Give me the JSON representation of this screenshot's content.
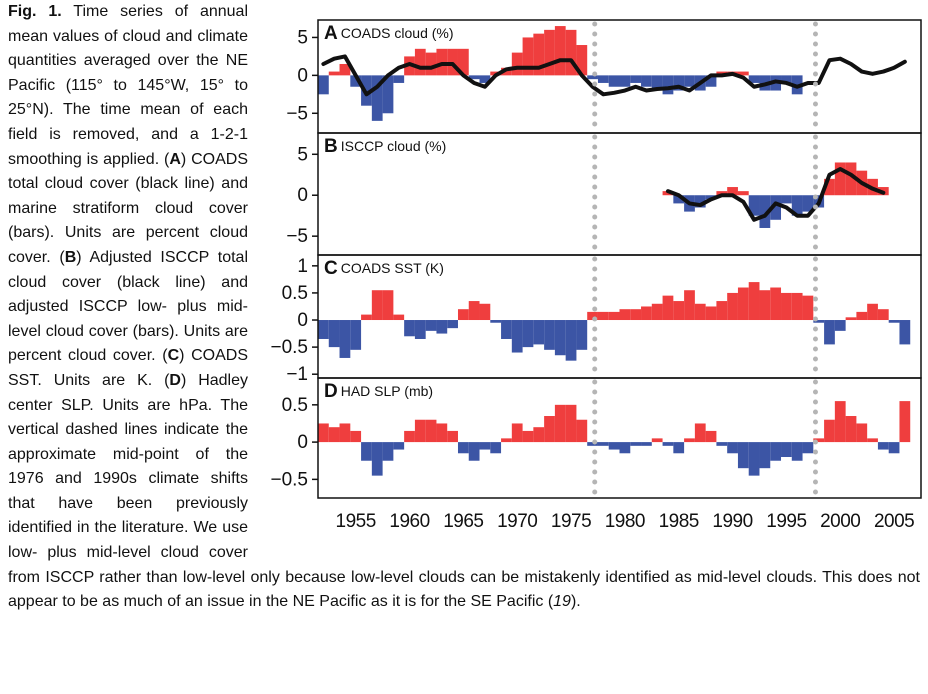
{
  "caption": [
    {
      "text": "Fig. 1.",
      "bold": true
    },
    {
      "text": " Time series of annual mean values of cloud and climate quantities averaged over the NE Pacific (115° to 145°W, 15° to 25°N). The time mean of each field is removed, and a 1-2-1 smoothing is applied. ("
    },
    {
      "text": "A",
      "bold": true
    },
    {
      "text": ") COADS total cloud cover (black line) and marine stratiform cloud cover (bars). Units are percent cloud cover. ("
    },
    {
      "text": "B",
      "bold": true
    },
    {
      "text": ") Adjusted ISCCP total cloud cover (black line) and adjusted ISCCP low- plus mid-level cloud cover (bars). Units are percent cloud cover. ("
    },
    {
      "text": "C",
      "bold": true
    },
    {
      "text": ") COADS SST. Units are K. ("
    },
    {
      "text": "D",
      "bold": true
    },
    {
      "text": ") Hadley center SLP. Units are hPa. The vertical dashed lines indicate the approximate mid-point of the 1976 and 1990s climate shifts that have been previously identified in the literature. We use low- plus mid-level cloud cover from ISCCP rather than low-level only because low-level clouds can be mistakenly identified as mid-level clouds. This does not appear to be as much of an issue in the NE Pacific as it is for the SE Pacific ("
    },
    {
      "text": "19",
      "italic": true
    },
    {
      "text": ")."
    }
  ],
  "chart_data": [
    {
      "type": "bar",
      "letter": "A",
      "title": "COADS cloud (%)",
      "x": [
        1952,
        1953,
        1954,
        1955,
        1956,
        1957,
        1958,
        1959,
        1960,
        1961,
        1962,
        1963,
        1964,
        1965,
        1966,
        1967,
        1968,
        1969,
        1970,
        1971,
        1972,
        1973,
        1974,
        1975,
        1976,
        1977,
        1978,
        1979,
        1980,
        1981,
        1982,
        1983,
        1984,
        1985,
        1986,
        1987,
        1988,
        1989,
        1990,
        1991,
        1992,
        1993,
        1994,
        1995,
        1996,
        1997,
        1998,
        1999,
        2000,
        2001,
        2002,
        2003,
        2004,
        2005,
        2006
      ],
      "series": [
        {
          "kind": "bar",
          "values": [
            -2.5,
            0.5,
            1.5,
            -1.5,
            -4,
            -6,
            -5,
            -1,
            2.5,
            3.5,
            3,
            3.5,
            3.5,
            3.5,
            -0.5,
            -1,
            0.5,
            1,
            3,
            5,
            5.5,
            6,
            6.5,
            6,
            4,
            -0.5,
            -1,
            -1.5,
            -1.5,
            -1,
            -1.5,
            -2,
            -2.5,
            -2,
            -1.5,
            -2,
            -1.5,
            0.5,
            0.5,
            0.5,
            -1,
            -2,
            -2,
            -1,
            -2.5,
            null,
            null,
            null,
            null,
            null,
            null,
            null,
            null,
            null,
            null
          ]
        },
        {
          "kind": "line",
          "color": "#111111",
          "values": [
            1.5,
            2.2,
            2.5,
            0,
            -2.5,
            -1.5,
            0,
            1,
            1.5,
            1,
            1,
            1.5,
            1.5,
            0,
            -1,
            -1.5,
            0,
            0.8,
            1,
            1,
            1,
            1.5,
            2,
            2,
            0,
            -1.5,
            -2.5,
            -2.3,
            -2,
            -1.5,
            -2,
            -1.8,
            -1.7,
            -1.5,
            -2,
            -1,
            0,
            0,
            0.2,
            -0.3,
            -1.5,
            -1.2,
            -0.8,
            -1,
            -1.5,
            -1,
            -1,
            2,
            2.2,
            1.5,
            0.5,
            0.2,
            0.5,
            1,
            1.8
          ]
        }
      ],
      "positive_color": "#ef3e3e",
      "negative_color": "#3c55a5",
      "xlim": [
        1951.5,
        2007.5
      ],
      "ylim": [
        -7.6,
        7.3
      ],
      "yticks": [
        {
          "value": -5,
          "label": "−5"
        },
        0,
        5
      ],
      "vlines": [
        1977.2,
        1997.7
      ]
    },
    {
      "type": "bar",
      "letter": "B",
      "title": "ISCCP cloud (%)",
      "x": [
        1952,
        1953,
        1954,
        1955,
        1956,
        1957,
        1958,
        1959,
        1960,
        1961,
        1962,
        1963,
        1964,
        1965,
        1966,
        1967,
        1968,
        1969,
        1970,
        1971,
        1972,
        1973,
        1974,
        1975,
        1976,
        1977,
        1978,
        1979,
        1980,
        1981,
        1982,
        1983,
        1984,
        1985,
        1986,
        1987,
        1988,
        1989,
        1990,
        1991,
        1992,
        1993,
        1994,
        1995,
        1996,
        1997,
        1998,
        1999,
        2000,
        2001,
        2002,
        2003,
        2004,
        2005,
        2006
      ],
      "series": [
        {
          "kind": "bar",
          "values": [
            null,
            null,
            null,
            null,
            null,
            null,
            null,
            null,
            null,
            null,
            null,
            null,
            null,
            null,
            null,
            null,
            null,
            null,
            null,
            null,
            null,
            null,
            null,
            null,
            null,
            null,
            null,
            null,
            null,
            null,
            null,
            null,
            0.5,
            -1,
            -2,
            -1.5,
            -0.5,
            0.5,
            1,
            0.5,
            -2.5,
            -4,
            -3,
            -1,
            -2.5,
            -2,
            -1.5,
            2,
            4,
            4,
            3,
            2,
            1,
            null,
            null
          ]
        },
        {
          "kind": "line",
          "color": "#111111",
          "values": [
            null,
            null,
            null,
            null,
            null,
            null,
            null,
            null,
            null,
            null,
            null,
            null,
            null,
            null,
            null,
            null,
            null,
            null,
            null,
            null,
            null,
            null,
            null,
            null,
            null,
            null,
            null,
            null,
            null,
            null,
            null,
            null,
            0.5,
            0,
            -1,
            -1.2,
            -0.5,
            0,
            0,
            -0.8,
            -3,
            -2.5,
            -1,
            -1.5,
            -2.5,
            -2.5,
            -1,
            2.5,
            3.2,
            2.5,
            1.5,
            0.8,
            0.3,
            null,
            null
          ]
        }
      ],
      "positive_color": "#ef3e3e",
      "negative_color": "#3c55a5",
      "xlim": [
        1951.5,
        2007.5
      ],
      "ylim": [
        -7.3,
        7.6
      ],
      "yticks": [
        {
          "value": -5,
          "label": "−5"
        },
        0,
        5
      ],
      "vlines": [
        1977.2,
        1997.7
      ]
    },
    {
      "type": "bar",
      "letter": "C",
      "title": "COADS SST (K)",
      "x": [
        1952,
        1953,
        1954,
        1955,
        1956,
        1957,
        1958,
        1959,
        1960,
        1961,
        1962,
        1963,
        1964,
        1965,
        1966,
        1967,
        1968,
        1969,
        1970,
        1971,
        1972,
        1973,
        1974,
        1975,
        1976,
        1977,
        1978,
        1979,
        1980,
        1981,
        1982,
        1983,
        1984,
        1985,
        1986,
        1987,
        1988,
        1989,
        1990,
        1991,
        1992,
        1993,
        1994,
        1995,
        1996,
        1997,
        1998,
        1999,
        2000,
        2001,
        2002,
        2003,
        2004,
        2005,
        2006
      ],
      "series": [
        {
          "kind": "bar",
          "values": [
            -0.35,
            -0.5,
            -0.7,
            -0.55,
            0.1,
            0.55,
            0.55,
            0.1,
            -0.3,
            -0.35,
            -0.2,
            -0.25,
            -0.15,
            0.2,
            0.35,
            0.3,
            -0.05,
            -0.35,
            -0.6,
            -0.5,
            -0.45,
            -0.55,
            -0.65,
            -0.75,
            -0.55,
            0.15,
            0.15,
            0.15,
            0.2,
            0.2,
            0.25,
            0.3,
            0.45,
            0.35,
            0.55,
            0.3,
            0.25,
            0.35,
            0.5,
            0.6,
            0.7,
            0.55,
            0.6,
            0.5,
            0.5,
            0.45,
            -0.05,
            -0.45,
            -0.2,
            0.05,
            0.15,
            0.3,
            0.2,
            -0.05,
            -0.45
          ]
        }
      ],
      "positive_color": "#ef3e3e",
      "negative_color": "#3c55a5",
      "xlim": [
        1951.5,
        2007.5
      ],
      "ylim": [
        -1.07,
        1.2
      ],
      "yticks": [
        {
          "value": -1,
          "label": "−1"
        },
        {
          "value": -0.5,
          "label": "−0.5"
        },
        0,
        0.5,
        1
      ],
      "vlines": [
        1977.2,
        1997.7
      ]
    },
    {
      "type": "bar",
      "letter": "D",
      "title": "HAD SLP (mb)",
      "x": [
        1952,
        1953,
        1954,
        1955,
        1956,
        1957,
        1958,
        1959,
        1960,
        1961,
        1962,
        1963,
        1964,
        1965,
        1966,
        1967,
        1968,
        1969,
        1970,
        1971,
        1972,
        1973,
        1974,
        1975,
        1976,
        1977,
        1978,
        1979,
        1980,
        1981,
        1982,
        1983,
        1984,
        1985,
        1986,
        1987,
        1988,
        1989,
        1990,
        1991,
        1992,
        1993,
        1994,
        1995,
        1996,
        1997,
        1998,
        1999,
        2000,
        2001,
        2002,
        2003,
        2004,
        2005,
        2006
      ],
      "series": [
        {
          "kind": "bar",
          "values": [
            0.25,
            0.2,
            0.25,
            0.15,
            -0.25,
            -0.45,
            -0.25,
            -0.1,
            0.15,
            0.3,
            0.3,
            0.25,
            0.15,
            -0.15,
            -0.25,
            -0.1,
            -0.15,
            0.05,
            0.25,
            0.15,
            0.2,
            0.35,
            0.5,
            0.5,
            0.3,
            -0.05,
            -0.05,
            -0.1,
            -0.15,
            -0.05,
            -0.05,
            0.05,
            -0.05,
            -0.15,
            0.05,
            0.25,
            0.15,
            -0.05,
            -0.15,
            -0.35,
            -0.45,
            -0.35,
            -0.25,
            -0.2,
            -0.25,
            -0.15,
            0.05,
            0.3,
            0.55,
            0.35,
            0.25,
            0.05,
            -0.1,
            -0.15,
            0.55
          ]
        }
      ],
      "positive_color": "#ef3e3e",
      "negative_color": "#3c55a5",
      "xlim": [
        1951.5,
        2007.5
      ],
      "ylim": [
        -0.75,
        0.86
      ],
      "yticks": [
        {
          "value": -0.5,
          "label": "−0.5"
        },
        0,
        0.5
      ],
      "xticks": [
        1955,
        1960,
        1965,
        1970,
        1975,
        1980,
        1985,
        1990,
        1995,
        2000,
        2005
      ],
      "vlines": [
        1977.2,
        1997.7
      ]
    }
  ]
}
